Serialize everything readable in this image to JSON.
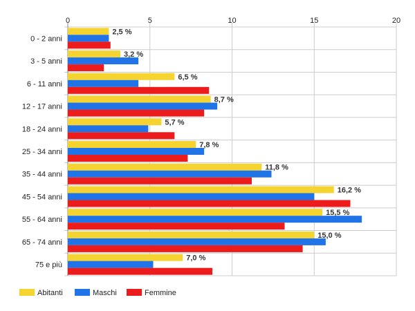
{
  "chart_data": {
    "type": "bar",
    "orientation": "horizontal",
    "categories": [
      "0 - 2 anni",
      "3 - 5 anni",
      "6 - 11 anni",
      "12 - 17 anni",
      "18 - 24 anni",
      "25 - 34 anni",
      "35 - 44 anni",
      "45 - 54 anni",
      "55 - 64 anni",
      "65 - 74 anni",
      "75 e più"
    ],
    "series": [
      {
        "name": "Abitanti",
        "color": "#f5d432",
        "values": [
          2.5,
          3.2,
          6.5,
          8.7,
          5.7,
          7.8,
          11.8,
          16.2,
          15.5,
          15.0,
          7.0
        ]
      },
      {
        "name": "Maschi",
        "color": "#2074e8",
        "values": [
          2.5,
          4.3,
          4.3,
          9.1,
          4.9,
          8.3,
          12.4,
          15.0,
          17.9,
          15.7,
          5.2
        ]
      },
      {
        "name": "Femmine",
        "color": "#ec1c1c",
        "values": [
          2.6,
          2.2,
          8.6,
          8.3,
          6.5,
          7.3,
          11.2,
          17.2,
          13.2,
          14.3,
          8.8
        ]
      }
    ],
    "data_labels": [
      "2,5 %",
      "3,2 %",
      "6,5 %",
      "8,7 %",
      "5,7 %",
      "7,8 %",
      "11,8 %",
      "16,2 %",
      "15,5 %",
      "15,0 %",
      "7,0 %"
    ],
    "x_ticks": [
      "0",
      "5",
      "10",
      "15",
      "20"
    ],
    "xlim": [
      0,
      20
    ],
    "x_axis_position": "top",
    "grid": true,
    "legend_position": "bottom-left",
    "title": "",
    "xlabel": "",
    "ylabel": ""
  }
}
